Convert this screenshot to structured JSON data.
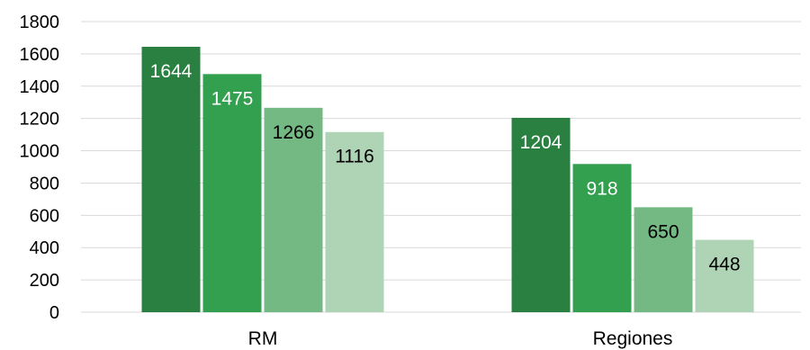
{
  "chart_data": {
    "type": "bar",
    "categories": [
      "RM",
      "Regiones"
    ],
    "series": [
      {
        "values": [
          1644,
          1204
        ],
        "color": "#2a8040"
      },
      {
        "values": [
          1475,
          918
        ],
        "color": "#33a050"
      },
      {
        "values": [
          1266,
          650
        ],
        "color": "#74b983"
      },
      {
        "values": [
          1116,
          448
        ],
        "color": "#aed3b5"
      }
    ],
    "label_colors": [
      "#ffffff",
      "#ffffff",
      "#000000",
      "#000000"
    ],
    "title": "",
    "xlabel": "",
    "ylabel": "",
    "ylim": [
      0,
      1800
    ],
    "yticks": [
      "0",
      "200",
      "400",
      "600",
      "800",
      "1000",
      "1200",
      "1400",
      "1600",
      "1800"
    ],
    "grid": true,
    "legend": "none"
  }
}
